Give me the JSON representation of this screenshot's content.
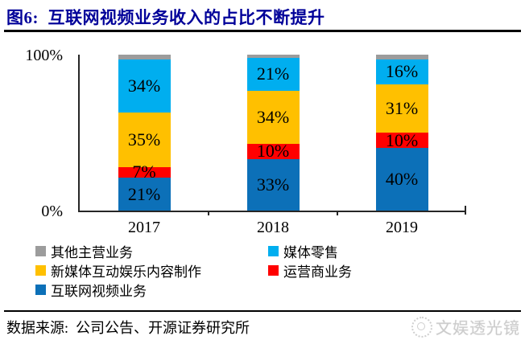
{
  "figure": {
    "title": "图6:  互联网视频业务收入的占比不断提升",
    "source_label": "数据来源:  公司公告、开源证券研究所",
    "watermark_text": "文娱透光镜"
  },
  "colors": {
    "title_navy": "#000099",
    "internet_video_blue": "#0C70B8",
    "operator_red": "#FF0000",
    "new_media_gold": "#FFC000",
    "media_retail_cyan": "#00AEEF",
    "other_gray": "#9C9C9C",
    "watermark_gray": "#C9C9C9"
  },
  "chart_data": {
    "type": "bar",
    "stacked": true,
    "title": "互联网视频业务收入的占比不断提升",
    "categories": [
      "2017",
      "2018",
      "2019"
    ],
    "series": [
      {
        "name": "互联网视频业务",
        "color": "#0C70B8",
        "values": [
          21,
          33,
          40
        ],
        "labels": [
          "21%",
          "33%",
          "40%"
        ]
      },
      {
        "name": "运营商业务",
        "color": "#FF0000",
        "values": [
          7,
          10,
          10
        ],
        "labels": [
          "7%",
          "10%",
          "10%"
        ]
      },
      {
        "name": "新媒体互动娱乐内容制作",
        "color": "#FFC000",
        "values": [
          35,
          34,
          31
        ],
        "labels": [
          "35%",
          "34%",
          "31%"
        ]
      },
      {
        "name": "媒体零售",
        "color": "#00AEEF",
        "values": [
          34,
          21,
          16
        ],
        "labels": [
          "34%",
          "21%",
          "16%"
        ]
      },
      {
        "name": "其他主营业务",
        "color": "#9C9C9C",
        "values": [
          3,
          2,
          3
        ],
        "labels": [
          "",
          "",
          ""
        ]
      }
    ],
    "ylim": [
      0,
      100
    ],
    "yticks": [
      "100%",
      "0%"
    ],
    "grid": false,
    "legend_position": "bottom"
  },
  "legend": {
    "items": [
      {
        "label": "其他主营业务",
        "color": "#9C9C9C"
      },
      {
        "label": "媒体零售",
        "color": "#00AEEF"
      },
      {
        "label": "新媒体互动娱乐内容制作",
        "color": "#FFC000"
      },
      {
        "label": "运营商业务",
        "color": "#FF0000"
      },
      {
        "label": "互联网视频业务",
        "color": "#0C70B8"
      }
    ]
  }
}
